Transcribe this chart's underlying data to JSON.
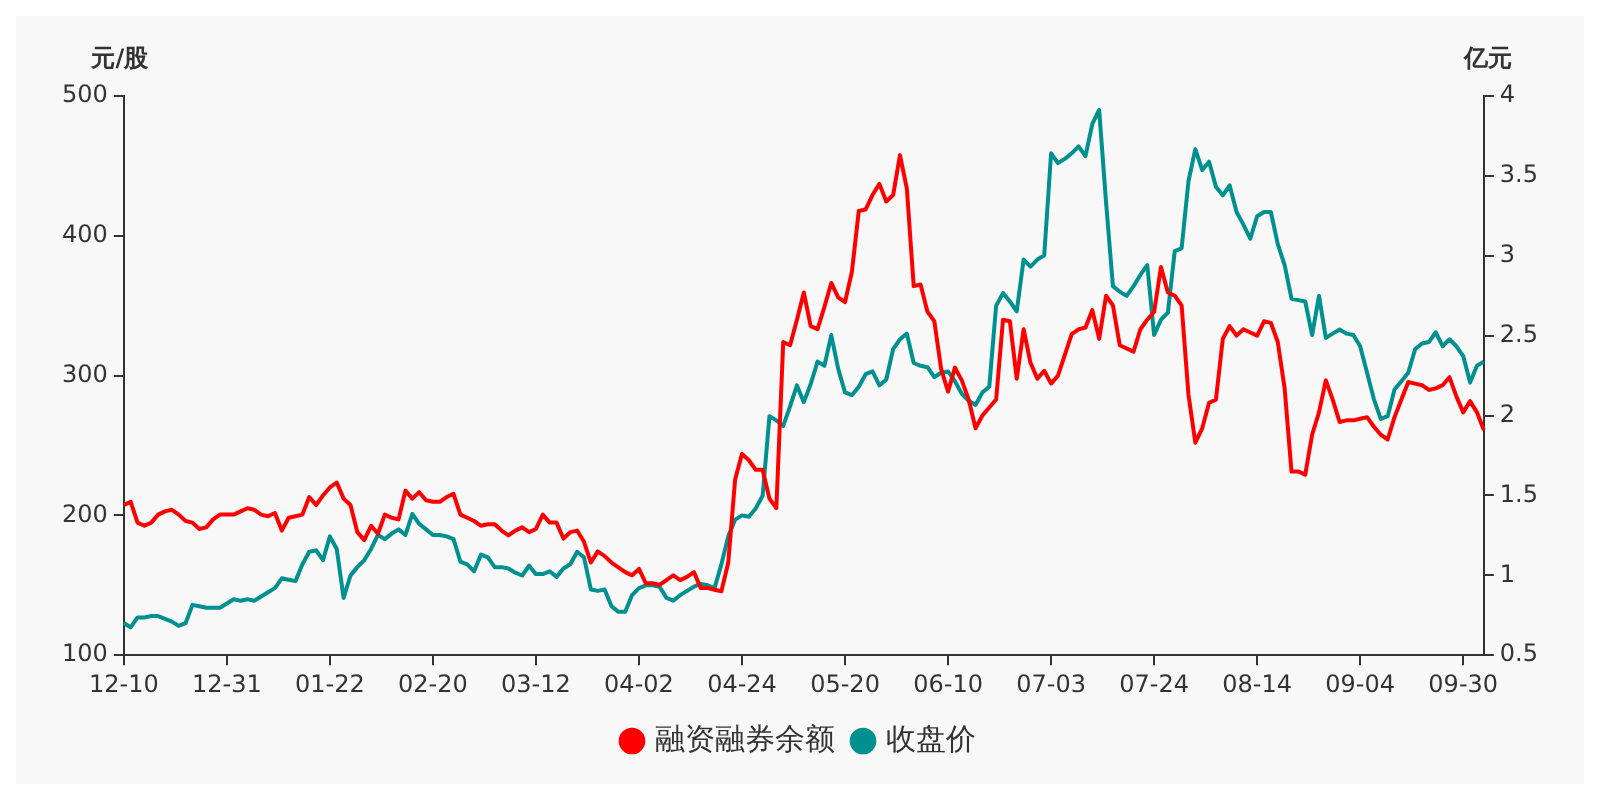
{
  "chart_data": {
    "type": "line",
    "ylabel": "元/股",
    "y2label": "亿元",
    "categories": [
      "12-10",
      null,
      null,
      null,
      null,
      null,
      null,
      null,
      null,
      null,
      null,
      null,
      null,
      null,
      null,
      "12-31",
      null,
      null,
      null,
      null,
      null,
      null,
      null,
      null,
      null,
      null,
      null,
      null,
      null,
      null,
      "01-22",
      null,
      null,
      null,
      null,
      null,
      null,
      null,
      null,
      null,
      null,
      null,
      null,
      null,
      null,
      "02-20",
      null,
      null,
      null,
      null,
      null,
      null,
      null,
      null,
      null,
      null,
      null,
      null,
      null,
      null,
      "03-12",
      null,
      null,
      null,
      null,
      null,
      null,
      null,
      null,
      null,
      null,
      null,
      null,
      null,
      null,
      "04-02",
      null,
      null,
      null,
      null,
      null,
      null,
      null,
      null,
      null,
      null,
      null,
      null,
      null,
      null,
      "04-24",
      null,
      null,
      null,
      null,
      null,
      null,
      null,
      null,
      null,
      null,
      null,
      null,
      null,
      null,
      "05-20",
      null,
      null,
      null,
      null,
      null,
      null,
      null,
      null,
      null,
      null,
      null,
      null,
      null,
      null,
      "06-10",
      null,
      null,
      null,
      null,
      null,
      null,
      null,
      null,
      null,
      null,
      null,
      null,
      null,
      null,
      "07-03",
      null,
      null,
      null,
      null,
      null,
      null,
      null,
      null,
      null,
      null,
      null,
      null,
      null,
      null,
      "07-24",
      null,
      null,
      null,
      null,
      null,
      null,
      null,
      null,
      null,
      null,
      null,
      null,
      null,
      null,
      "08-14",
      null,
      null,
      null,
      null,
      null,
      null,
      null,
      null,
      null,
      null,
      null,
      null,
      null,
      null,
      "09-04",
      null,
      null,
      null,
      null,
      null,
      null,
      null,
      null,
      null,
      null,
      null,
      null,
      null,
      null,
      "09-30",
      null,
      null,
      null
    ],
    "series": [
      {
        "name": "融资融券余额",
        "color": "#ff0000",
        "axis": "y2",
        "values": [
          1.44,
          1.46,
          1.33,
          1.31,
          1.33,
          1.38,
          1.4,
          1.41,
          1.38,
          1.34,
          1.33,
          1.29,
          1.3,
          1.35,
          1.38,
          1.38,
          1.38,
          1.4,
          1.42,
          1.41,
          1.38,
          1.37,
          1.39,
          1.28,
          1.36,
          1.37,
          1.38,
          1.49,
          1.44,
          1.5,
          1.55,
          1.58,
          1.48,
          1.44,
          1.27,
          1.22,
          1.31,
          1.26,
          1.38,
          1.36,
          1.35,
          1.53,
          1.48,
          1.52,
          1.47,
          1.46,
          1.46,
          1.49,
          1.51,
          1.38,
          1.36,
          1.34,
          1.31,
          1.32,
          1.32,
          1.28,
          1.25,
          1.28,
          1.3,
          1.27,
          1.29,
          1.38,
          1.33,
          1.33,
          1.23,
          1.27,
          1.28,
          1.21,
          1.08,
          1.15,
          1.12,
          1.08,
          1.05,
          1.02,
          1.0,
          1.04,
          0.95,
          0.95,
          0.94,
          0.97,
          1.0,
          0.97,
          0.99,
          1.02,
          0.92,
          0.92,
          0.91,
          0.9,
          1.08,
          1.6,
          1.76,
          1.72,
          1.66,
          1.66,
          1.48,
          1.42,
          2.46,
          2.44,
          2.6,
          2.77,
          2.56,
          2.54,
          2.68,
          2.83,
          2.74,
          2.71,
          2.9,
          3.28,
          3.29,
          3.38,
          3.45,
          3.34,
          3.38,
          3.63,
          3.42,
          2.81,
          2.82,
          2.65,
          2.59,
          2.29,
          2.15,
          2.3,
          2.22,
          2.1,
          1.92,
          2.0,
          2.05,
          2.1,
          2.6,
          2.59,
          2.23,
          2.54,
          2.33,
          2.23,
          2.28,
          2.2,
          2.25,
          2.38,
          2.51,
          2.54,
          2.55,
          2.66,
          2.48,
          2.75,
          2.69,
          2.44,
          2.42,
          2.4,
          2.54,
          2.6,
          2.65,
          2.93,
          2.77,
          2.75,
          2.69,
          2.13,
          1.83,
          1.92,
          2.08,
          2.1,
          2.48,
          2.56,
          2.5,
          2.54,
          2.52,
          2.5,
          2.59,
          2.58,
          2.46,
          2.17,
          1.65,
          1.65,
          1.63,
          1.88,
          2.02,
          2.22,
          2.1,
          1.96,
          1.97,
          1.97,
          1.98,
          1.99,
          1.93,
          1.88,
          1.85,
          1.99,
          2.1,
          2.21,
          2.2,
          2.19,
          2.16,
          2.17,
          2.19,
          2.24,
          2.12,
          2.02,
          2.09,
          2.02,
          1.91
        ]
      },
      {
        "name": "收盘价",
        "color": "#009090",
        "values": [
          123,
          120,
          127,
          127,
          128,
          128,
          126,
          124,
          121,
          123,
          136,
          135,
          134,
          134,
          134,
          137,
          140,
          139,
          140,
          139,
          142,
          145,
          148,
          155,
          154,
          153,
          165,
          174,
          175,
          168,
          185,
          176,
          141,
          157,
          163,
          168,
          176,
          186,
          183,
          187,
          190,
          186,
          201,
          194,
          190,
          186,
          186,
          185,
          183,
          167,
          165,
          160,
          172,
          170,
          163,
          163,
          162,
          159,
          157,
          164,
          158,
          158,
          160,
          156,
          162,
          165,
          174,
          170,
          147,
          146,
          147,
          135,
          131,
          131,
          143,
          148,
          150,
          150,
          149,
          141,
          139,
          143,
          146,
          149,
          151,
          150,
          148,
          165,
          185,
          197,
          200,
          199,
          205,
          214,
          271,
          268,
          264,
          278,
          293,
          281,
          294,
          310,
          307,
          329,
          305,
          288,
          286,
          292,
          301,
          303,
          293,
          297,
          319,
          326,
          330,
          309,
          307,
          306,
          299,
          302,
          303,
          296,
          287,
          282,
          279,
          288,
          292,
          350,
          359,
          353,
          346,
          383,
          378,
          383,
          386,
          459,
          452,
          455,
          459,
          464,
          457,
          480,
          490,
          424,
          364,
          360,
          357,
          364,
          372,
          379,
          329,
          340,
          345,
          389,
          391,
          439,
          462,
          447,
          453,
          435,
          429,
          436,
          417,
          408,
          398,
          414,
          417,
          417,
          394,
          379,
          355,
          354,
          353,
          329,
          357,
          327,
          330,
          333,
          330,
          329,
          321,
          302,
          283,
          269,
          271,
          290,
          296,
          302,
          319,
          323,
          324,
          331,
          321,
          326,
          321,
          314,
          295,
          307,
          310
        ]
      }
    ],
    "ylim": [
      100,
      500
    ],
    "yticks": [
      100,
      200,
      300,
      400,
      500
    ],
    "y2lim": [
      0.5,
      4
    ],
    "y2ticks": [
      0.5,
      1,
      1.5,
      2,
      2.5,
      3,
      3.5,
      4
    ],
    "legend": "bottom",
    "marker": "none",
    "line_style": "solid"
  }
}
